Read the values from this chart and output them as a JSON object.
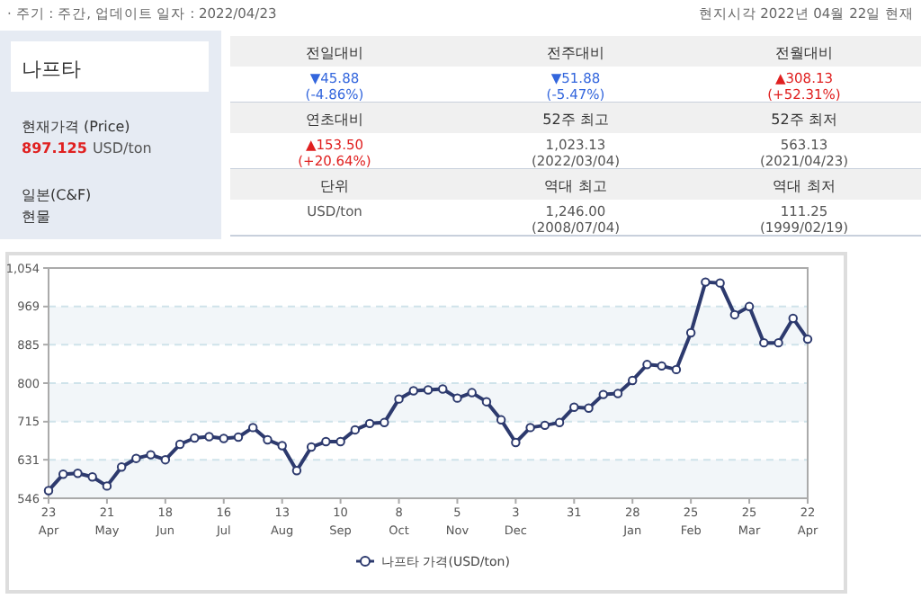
{
  "chart_data": [
    {
      "type": "other",
      "title": "나프타",
      "annotations": [
        "· 주기 : 주간, 업데이트 일자 : 2022/04/23",
        "현지시각 2022년 04월 22일 현재",
        "현재가격 (Price)",
        "897.125",
        "USD/ton",
        "일본(C&F)",
        "현물"
      ],
      "categories": [
        "전일대비",
        "전주대비",
        "전월대비",
        "연초대비",
        "52주 최고",
        "52주 최저",
        "단위",
        "역대 최고",
        "역대 최저"
      ],
      "value_labels": [
        "▼45.88\n(-4.86%)",
        "▼51.88\n(-5.47%)",
        "▲308.13\n(+52.31%)",
        "▲153.50\n(+20.64%)",
        "1,023.13\n(2022/03/04)",
        "563.13\n(2021/04/23)",
        "USD/ton",
        "1,246.00\n(2008/07/04)",
        "111.25\n(1999/02/19)"
      ]
    },
    {
      "type": "line",
      "grid": "y",
      "legend": "bottom",
      "marker": "circle",
      "x": [
        "2021-04-23",
        "2021-04-30",
        "2021-05-07",
        "2021-05-14",
        "2021-05-21",
        "2021-05-28",
        "2021-06-04",
        "2021-06-11",
        "2021-06-18",
        "2021-06-25",
        "2021-07-02",
        "2021-07-09",
        "2021-07-16",
        "2021-07-23",
        "2021-07-30",
        "2021-08-06",
        "2021-08-13",
        "2021-08-20",
        "2021-08-27",
        "2021-09-03",
        "2021-09-10",
        "2021-09-17",
        "2021-09-24",
        "2021-10-01",
        "2021-10-08",
        "2021-10-15",
        "2021-10-22",
        "2021-10-29",
        "2021-11-05",
        "2021-11-12",
        "2021-11-19",
        "2021-11-26",
        "2021-12-03",
        "2021-12-10",
        "2021-12-17",
        "2021-12-24",
        "2021-12-31",
        "2022-01-07",
        "2022-01-14",
        "2022-01-21",
        "2022-01-28",
        "2022-02-04",
        "2022-02-11",
        "2022-02-18",
        "2022-02-25",
        "2022-03-04",
        "2022-03-11",
        "2022-03-18",
        "2022-03-25",
        "2022-04-01",
        "2022-04-08",
        "2022-04-15",
        "2022-04-22"
      ],
      "series": [
        {
          "name": "나프타 가격(USD/ton)",
          "color": "#2d3a6e",
          "values": [
            563,
            599,
            601,
            593,
            573,
            615,
            634,
            642,
            631,
            665,
            679,
            682,
            678,
            681,
            702,
            675,
            662,
            607,
            659,
            671,
            671,
            697,
            711,
            713,
            765,
            783,
            785,
            787,
            767,
            779,
            759,
            719,
            669,
            702,
            707,
            713,
            747,
            745,
            775,
            777,
            806,
            841,
            838,
            830,
            911,
            1023,
            1021,
            951,
            969,
            889,
            889,
            943,
            897
          ]
        }
      ],
      "xlim": [
        "2021-04-23",
        "2022-04-22"
      ],
      "xticks": [
        {
          "value": "2021-04-23",
          "label": "23\nApr"
        },
        {
          "value": "2021-05-21",
          "label": "21\nMay"
        },
        {
          "value": "2021-06-18",
          "label": "18\nJun"
        },
        {
          "value": "2021-07-16",
          "label": "16\nJul"
        },
        {
          "value": "2021-08-13",
          "label": "13\nAug"
        },
        {
          "value": "2021-09-10",
          "label": "10\nSep"
        },
        {
          "value": "2021-10-08",
          "label": "8\nOct"
        },
        {
          "value": "2021-11-05",
          "label": "5\nNov"
        },
        {
          "value": "2021-12-03",
          "label": "3\nDec"
        },
        {
          "value": "2021-12-31",
          "label": "31"
        },
        {
          "value": "2022-01-28",
          "label": "28\nJan"
        },
        {
          "value": "2022-02-25",
          "label": "25\nFeb"
        },
        {
          "value": "2022-03-25",
          "label": "25\nMar"
        },
        {
          "value": "2022-04-22",
          "label": "22\nApr"
        }
      ],
      "ylim": [
        546,
        1054
      ],
      "yticks": [
        546,
        631,
        715,
        800,
        885,
        969,
        {
          "value": 1054,
          "label": "1,054"
        }
      ]
    }
  ]
}
